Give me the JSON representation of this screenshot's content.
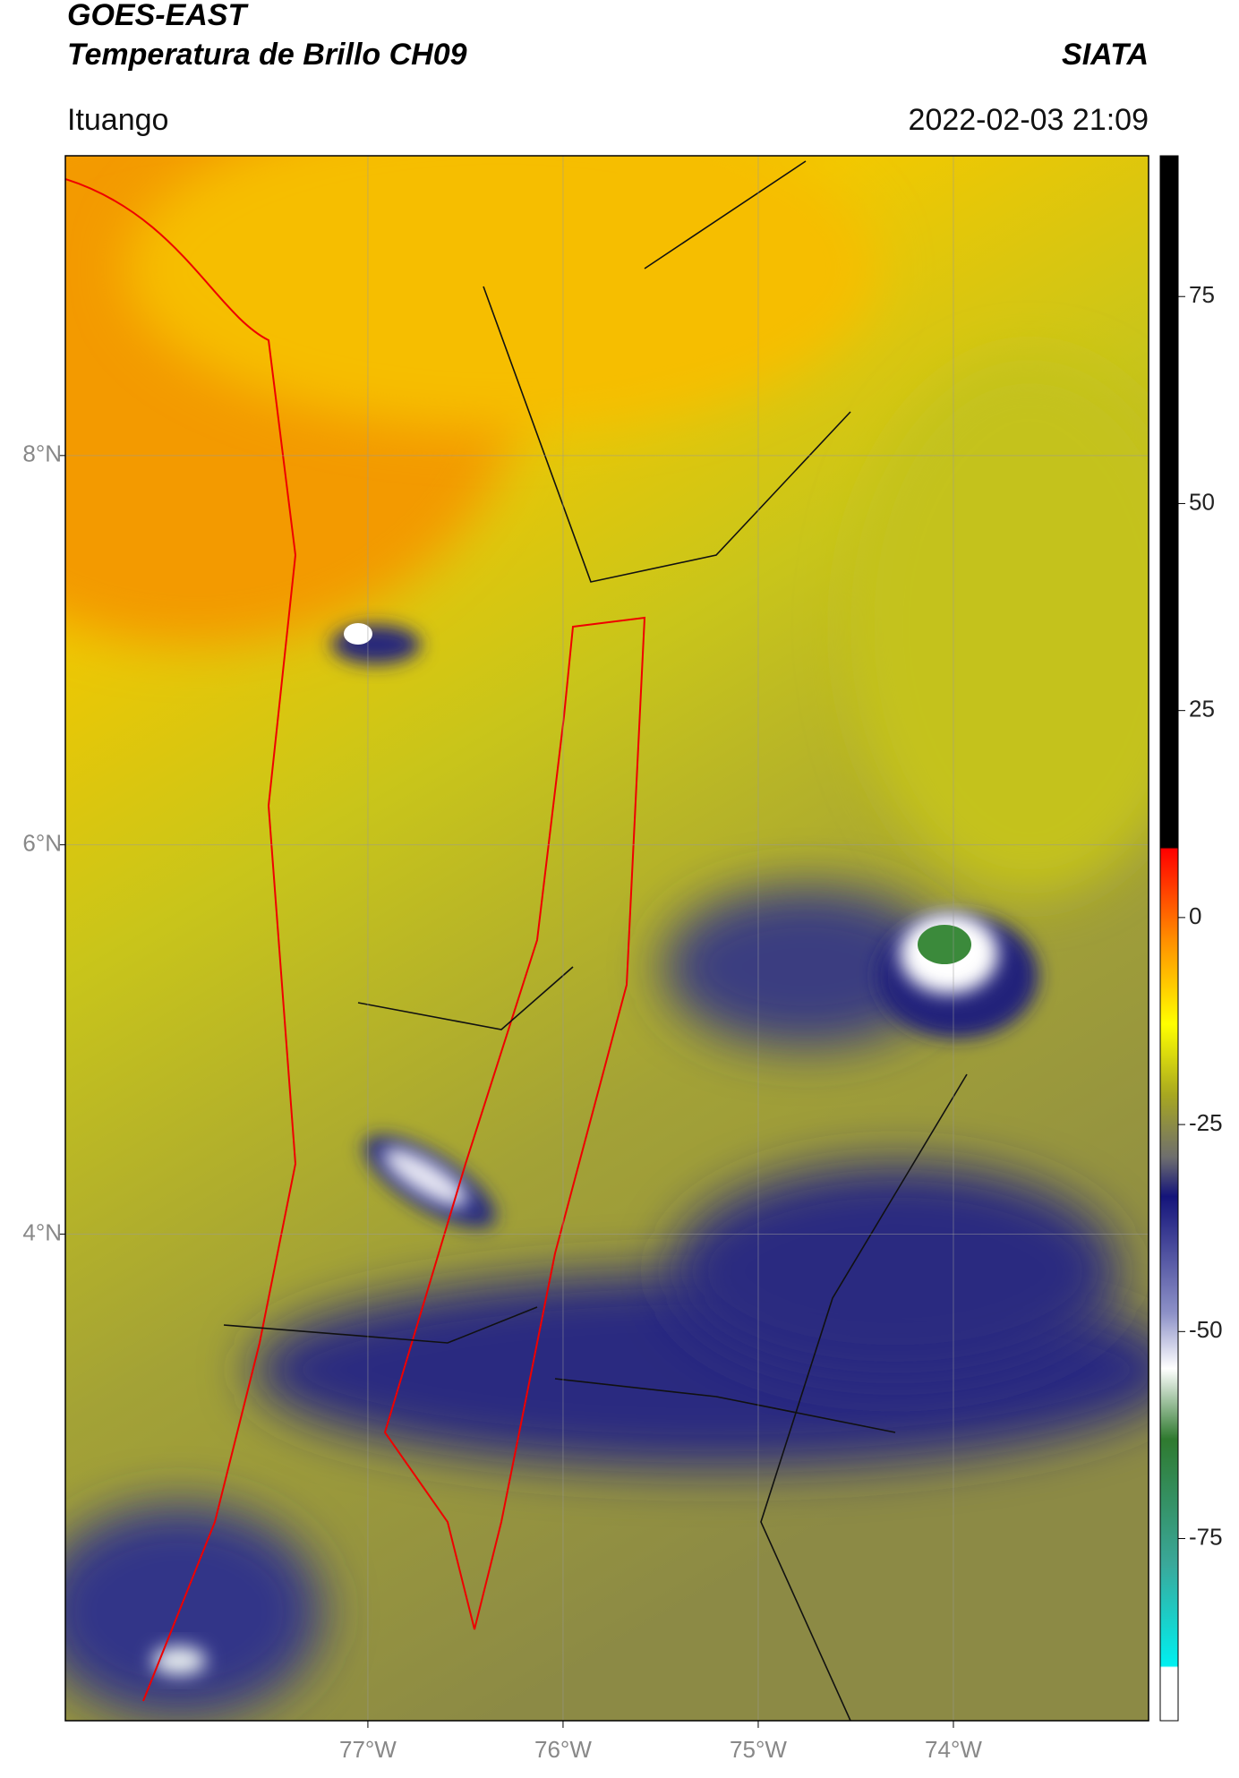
{
  "header": {
    "title": "GOES-EAST",
    "subtitle": "Temperatura de Brillo CH09",
    "source": "SIATA",
    "location": "Ituango",
    "datetime": "2022-02-03 21:09"
  },
  "map": {
    "xlim": [
      -78.55,
      -73
    ],
    "ylim": [
      1.5,
      9.54
    ],
    "grid": true,
    "xticks": [
      {
        "value": -77,
        "label": "77°W"
      },
      {
        "value": -76,
        "label": "76°W"
      },
      {
        "value": -75,
        "label": "75°W"
      },
      {
        "value": -74,
        "label": "74°W"
      }
    ],
    "yticks": [
      {
        "value": 8,
        "label": "8°N"
      },
      {
        "value": 6,
        "label": "6°N"
      },
      {
        "value": 4,
        "label": "4°N"
      }
    ]
  },
  "colorbar": {
    "lim": [
      -97,
      92
    ],
    "ticks": [
      75,
      50,
      25,
      0,
      -25,
      -50,
      -75
    ]
  }
}
